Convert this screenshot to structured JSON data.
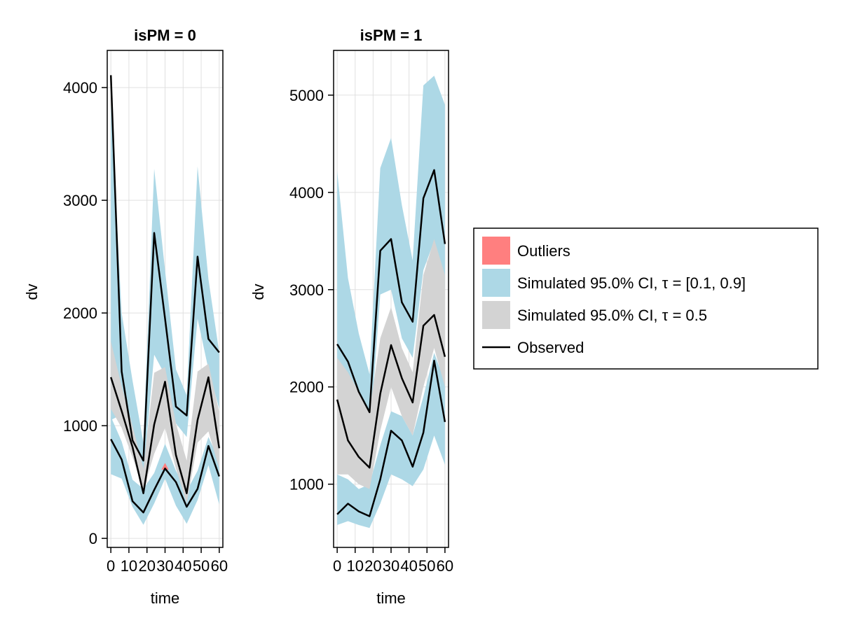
{
  "colors": {
    "outliers": "#ff7f7f",
    "ci_outer": "#add8e6",
    "ci_median": "#d3d3d3",
    "observed": "#000000",
    "grid": "#e0e0e0"
  },
  "legend": {
    "items": [
      {
        "key": "outliers",
        "label": "Outliers",
        "kind": "patch",
        "color": "#ff7f7f"
      },
      {
        "key": "ci_outer",
        "label": "Simulated 95.0% CI, τ = [0.1, 0.9]",
        "kind": "patch",
        "color": "#add8e6"
      },
      {
        "key": "ci_median",
        "label": "Simulated 95.0% CI, τ = 0.5",
        "kind": "patch",
        "color": "#d3d3d3"
      },
      {
        "key": "observed",
        "label": "Observed",
        "kind": "line",
        "color": "#000000"
      }
    ]
  },
  "chart_data": [
    {
      "type": "area",
      "title": "isPM = 0",
      "xlabel": "time",
      "ylabel": "dv",
      "xlim": [
        -2,
        62
      ],
      "ylim": [
        -80,
        4330
      ],
      "xticks": [
        0,
        10,
        20,
        30,
        40,
        50,
        60
      ],
      "xtick_labels": [
        "0",
        "10",
        "20",
        "30",
        "40",
        "50",
        "60"
      ],
      "yticks": [
        0,
        1000,
        2000,
        3000,
        4000
      ],
      "ytick_labels": [
        "0",
        "1000",
        "2000",
        "3000",
        "4000"
      ],
      "grid": true,
      "x": [
        0,
        6,
        12,
        18,
        24,
        30,
        36,
        42,
        48,
        54,
        60
      ],
      "bands": {
        "upper_q90": {
          "lo": [
            1050,
            1100,
            780,
            570,
            1630,
            1450,
            1020,
            900,
            1950,
            1500,
            1150
          ],
          "hi": [
            3850,
            2000,
            1400,
            850,
            3280,
            2380,
            1500,
            1270,
            3300,
            2300,
            1650
          ]
        },
        "median": {
          "lo": [
            1150,
            980,
            720,
            430,
            750,
            980,
            620,
            310,
            850,
            950,
            620
          ],
          "hi": [
            1750,
            1350,
            1000,
            620,
            1470,
            1520,
            1020,
            690,
            1480,
            1550,
            1120
          ]
        },
        "lower_q10": {
          "lo": [
            570,
            530,
            280,
            120,
            310,
            530,
            290,
            130,
            340,
            650,
            300
          ],
          "hi": [
            1080,
            860,
            520,
            440,
            580,
            840,
            600,
            420,
            600,
            900,
            690
          ]
        }
      },
      "outliers": [
        {
          "x": [
            28,
            30,
            32
          ],
          "lo": [
            610,
            610,
            610
          ],
          "hi": [
            610,
            670,
            610
          ]
        }
      ],
      "series": [
        {
          "name": "upper",
          "values": [
            4110,
            1480,
            870,
            690,
            2710,
            1950,
            1170,
            1090,
            2500,
            1770,
            1650
          ]
        },
        {
          "name": "median",
          "values": [
            1430,
            1130,
            810,
            400,
            1010,
            1390,
            740,
            400,
            1050,
            1430,
            800
          ]
        },
        {
          "name": "lower",
          "values": [
            880,
            700,
            330,
            230,
            430,
            620,
            500,
            280,
            440,
            820,
            550
          ]
        }
      ]
    },
    {
      "type": "area",
      "title": "isPM = 1",
      "xlabel": "time",
      "ylabel": "dv",
      "xlim": [
        -2,
        62
      ],
      "ylim": [
        350,
        5460
      ],
      "xticks": [
        0,
        10,
        20,
        30,
        40,
        50,
        60
      ],
      "xtick_labels": [
        "0",
        "10",
        "20",
        "30",
        "40",
        "50",
        "60"
      ],
      "yticks": [
        1000,
        2000,
        3000,
        4000,
        5000
      ],
      "ytick_labels": [
        "1000",
        "2000",
        "3000",
        "4000",
        "5000"
      ],
      "grid": true,
      "x": [
        0,
        6,
        12,
        18,
        24,
        30,
        36,
        42,
        48,
        54,
        60
      ],
      "bands": {
        "upper_q90": {
          "lo": [
            1900,
            1800,
            1700,
            1450,
            2950,
            3000,
            2500,
            2300,
            3200,
            3500,
            3000
          ],
          "hi": [
            4220,
            3120,
            2550,
            2130,
            4250,
            4560,
            3870,
            3300,
            5100,
            5200,
            4900
          ]
        },
        "median": {
          "lo": [
            1100,
            1100,
            1000,
            950,
            1550,
            2000,
            1700,
            1500,
            2000,
            2400,
            2000
          ],
          "hi": [
            2300,
            2150,
            1950,
            1750,
            2500,
            2820,
            2400,
            2150,
            3150,
            3520,
            3150
          ]
        },
        "lower_q10": {
          "lo": [
            580,
            620,
            580,
            550,
            800,
            1100,
            1050,
            980,
            1150,
            1500,
            1200
          ],
          "hi": [
            1100,
            1050,
            950,
            1000,
            1400,
            1750,
            1700,
            1500,
            1900,
            2350,
            2050
          ]
        }
      },
      "outliers": [],
      "series": [
        {
          "name": "upper",
          "values": [
            2440,
            2260,
            1950,
            1740,
            3400,
            3520,
            2870,
            2670,
            3940,
            4230,
            3470
          ]
        },
        {
          "name": "median",
          "values": [
            1870,
            1450,
            1280,
            1170,
            1930,
            2430,
            2090,
            1840,
            2630,
            2740,
            2310
          ]
        },
        {
          "name": "lower",
          "values": [
            690,
            800,
            720,
            670,
            1050,
            1550,
            1450,
            1180,
            1530,
            2270,
            1640
          ]
        }
      ]
    }
  ]
}
